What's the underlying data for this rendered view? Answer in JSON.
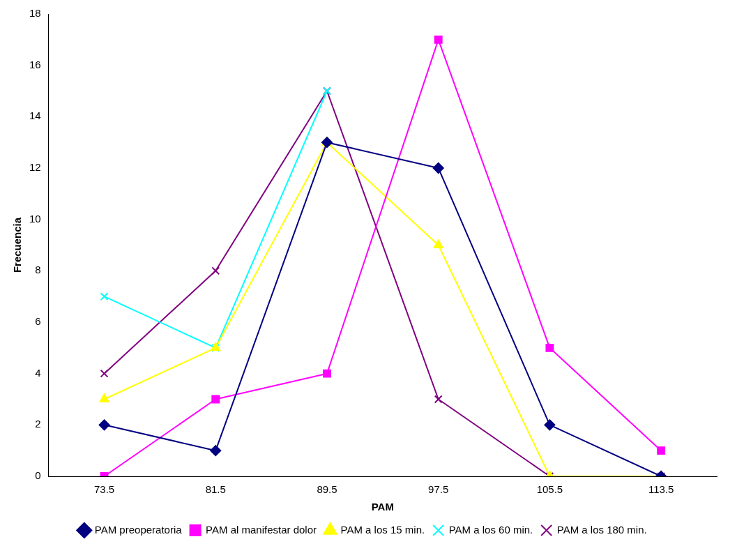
{
  "chart_data": {
    "type": "line",
    "xlabel": "PAM",
    "ylabel": "Frecuencia",
    "categories": [
      "73.5",
      "81.5",
      "89.5",
      "97.5",
      "105.5",
      "113.5"
    ],
    "series": [
      {
        "name": "PAM preoperatoria",
        "color": "#000080",
        "marker": "diamond",
        "values": [
          2,
          1,
          13,
          12,
          2,
          0
        ]
      },
      {
        "name": "PAM al manifestar dolor",
        "color": "#ff00ff",
        "marker": "square",
        "values": [
          0,
          3,
          4,
          17,
          5,
          1
        ]
      },
      {
        "name": "PAM a los 15 min.",
        "color": "#ffff00",
        "marker": "triangle",
        "values": [
          3,
          5,
          13,
          9,
          0,
          0
        ]
      },
      {
        "name": "PAM a los 60 min.",
        "color": "#00ffff",
        "marker": "cross",
        "values": [
          7,
          5,
          15,
          null,
          null,
          null
        ]
      },
      {
        "name": "PAM a los 180 min.",
        "color": "#800080",
        "marker": "cross",
        "values": [
          4,
          8,
          15,
          3,
          0,
          0
        ]
      }
    ],
    "ylim": [
      0,
      18
    ],
    "yticks": [
      0,
      2,
      4,
      6,
      8,
      10,
      12,
      14,
      16,
      18
    ],
    "grid": false,
    "legend": "bottom"
  }
}
